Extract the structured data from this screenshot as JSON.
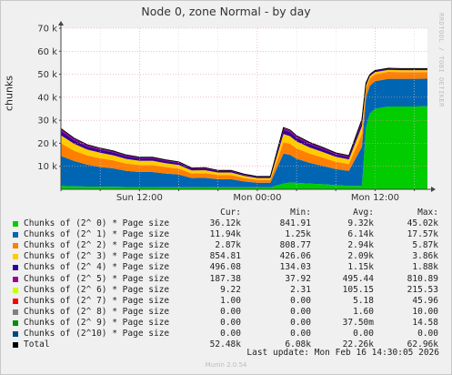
{
  "title": "Node 0, zone Normal - by day",
  "side_label": "RRDTOOL / TOBI OETIKER",
  "ylabel": "chunks",
  "legend_headers": {
    "cur": "Cur:",
    "min": "Min:",
    "avg": "Avg:",
    "max": "Max:"
  },
  "legend": [
    {
      "name": "Chunks of (2^ 0) * Page size",
      "color": "#00cc00",
      "cur": "36.12k",
      "min": "841.91",
      "avg": "9.32k",
      "max": "45.02k"
    },
    {
      "name": "Chunks of (2^ 1) * Page size",
      "color": "#0066b3",
      "cur": "11.94k",
      "min": "1.25k",
      "avg": "6.14k",
      "max": "17.57k"
    },
    {
      "name": "Chunks of (2^ 2) * Page size",
      "color": "#ff8000",
      "cur": "2.87k",
      "min": "808.77",
      "avg": "2.94k",
      "max": "5.87k"
    },
    {
      "name": "Chunks of (2^ 3) * Page size",
      "color": "#ffcc00",
      "cur": "854.81",
      "min": "426.06",
      "avg": "2.09k",
      "max": "3.86k"
    },
    {
      "name": "Chunks of (2^ 4) * Page size",
      "color": "#330099",
      "cur": "496.08",
      "min": "134.03",
      "avg": "1.15k",
      "max": "1.88k"
    },
    {
      "name": "Chunks of (2^ 5) * Page size",
      "color": "#990099",
      "cur": "187.38",
      "min": "37.92",
      "avg": "495.44",
      "max": "810.89"
    },
    {
      "name": "Chunks of (2^ 6) * Page size",
      "color": "#ccff00",
      "cur": "9.22",
      "min": "2.31",
      "avg": "105.15",
      "max": "215.53"
    },
    {
      "name": "Chunks of (2^ 7) * Page size",
      "color": "#ff0000",
      "cur": "1.00",
      "min": "0.00",
      "avg": "5.18",
      "max": "45.96"
    },
    {
      "name": "Chunks of (2^ 8) * Page size",
      "color": "#808080",
      "cur": "0.00",
      "min": "0.00",
      "avg": "1.60",
      "max": "10.00"
    },
    {
      "name": "Chunks of (2^ 9) * Page size",
      "color": "#008f00",
      "cur": "0.00",
      "min": "0.00",
      "avg": "37.50m",
      "max": "14.58"
    },
    {
      "name": "Chunks of (2^10) * Page size",
      "color": "#00487d",
      "cur": "0.00",
      "min": "0.00",
      "avg": "0.00",
      "max": "0.00"
    },
    {
      "name": "Total",
      "color": "#000000",
      "cur": "52.48k",
      "min": "6.08k",
      "avg": "22.26k",
      "max": "62.96k"
    }
  ],
  "last_update": "Last update: Mon Feb 16 14:30:05 2026",
  "footer": "Munin 2.0.54",
  "chart_data": {
    "type": "area",
    "stacked": true,
    "ylim": [
      0,
      70000
    ],
    "yticks": [
      10000,
      20000,
      30000,
      40000,
      50000,
      60000,
      70000
    ],
    "ytick_labels": [
      "10 k",
      "20 k",
      "30 k",
      "40 k",
      "50 k",
      "60 k",
      "70 k"
    ],
    "xlim": [
      0,
      28
    ],
    "xticks": [
      6,
      15,
      24
    ],
    "xtick_labels": [
      "Sun 12:00",
      "Mon 00:00",
      "Mon 12:00"
    ],
    "minor_xticks": [
      0,
      3,
      9,
      12,
      18,
      21,
      27
    ],
    "grid": true,
    "x": [
      0,
      1,
      2,
      3,
      4,
      5,
      6,
      7,
      8,
      9,
      10,
      11,
      12,
      13,
      14,
      15,
      16,
      17,
      17.5,
      18,
      19,
      20,
      21,
      22,
      23,
      23.3,
      23.6,
      24,
      25,
      26,
      27,
      28
    ],
    "series": [
      {
        "name": "Chunks of (2^ 0) * Page size",
        "values": [
          1500,
          1300,
          1200,
          1200,
          1100,
          1000,
          1000,
          1000,
          900,
          900,
          900,
          1000,
          900,
          900,
          900,
          900,
          900,
          2500,
          3000,
          2800,
          2500,
          2200,
          1800,
          1500,
          1500,
          27000,
          33000,
          35000,
          36000,
          36000,
          36000,
          36100
        ]
      },
      {
        "name": "Chunks of (2^ 1) * Page size",
        "values": [
          13000,
          11000,
          9500,
          8500,
          8000,
          7000,
          6500,
          6500,
          6000,
          5500,
          4000,
          4000,
          3500,
          3500,
          2500,
          2000,
          2000,
          13000,
          12000,
          10500,
          9000,
          8000,
          7000,
          6500,
          17000,
          13000,
          12000,
          12000,
          12000,
          12000,
          12000,
          11940
        ]
      },
      {
        "name": "Chunks of (2^ 2) * Page size",
        "values": [
          5500,
          4500,
          4000,
          3800,
          3500,
          3200,
          3000,
          3000,
          2800,
          2600,
          2000,
          2000,
          1800,
          1800,
          1500,
          1200,
          1200,
          5000,
          4800,
          4500,
          4000,
          3600,
          3200,
          3000,
          5500,
          3500,
          3200,
          3000,
          3000,
          2900,
          2900,
          2870
        ]
      },
      {
        "name": "Chunks of (2^ 3) * Page size",
        "values": [
          3500,
          3000,
          2600,
          2400,
          2200,
          2000,
          1900,
          1900,
          1700,
          1600,
          1300,
          1300,
          1100,
          1100,
          900,
          800,
          800,
          3500,
          3300,
          3000,
          2700,
          2400,
          2100,
          2000,
          3500,
          1500,
          1000,
          900,
          900,
          860,
          860,
          855
        ]
      },
      {
        "name": "Chunks of (2^ 4) * Page size",
        "values": [
          1800,
          1500,
          1300,
          1250,
          1200,
          1100,
          1000,
          1000,
          900,
          850,
          700,
          700,
          600,
          600,
          500,
          450,
          450,
          1800,
          1700,
          1600,
          1400,
          1300,
          1100,
          1050,
          1800,
          800,
          550,
          500,
          500,
          500,
          500,
          496
        ]
      },
      {
        "name": "Chunks of (2^ 5) * Page size",
        "values": [
          800,
          700,
          600,
          550,
          500,
          480,
          450,
          450,
          400,
          380,
          300,
          300,
          250,
          250,
          200,
          180,
          180,
          800,
          760,
          700,
          600,
          550,
          480,
          450,
          800,
          300,
          200,
          190,
          190,
          188,
          188,
          187
        ]
      },
      {
        "name": "Chunks of (2^ 6) * Page size",
        "values": [
          210,
          180,
          150,
          140,
          130,
          120,
          110,
          110,
          100,
          90,
          70,
          70,
          60,
          60,
          50,
          40,
          40,
          210,
          200,
          180,
          160,
          140,
          120,
          110,
          210,
          40,
          12,
          10,
          10,
          9,
          9,
          9
        ]
      },
      {
        "name": "Chunks of (2^ 7) * Page size",
        "values": [
          40,
          30,
          20,
          15,
          10,
          8,
          6,
          5,
          5,
          4,
          3,
          3,
          2,
          2,
          2,
          2,
          2,
          40,
          30,
          20,
          10,
          8,
          6,
          5,
          40,
          4,
          2,
          1,
          1,
          1,
          1,
          1
        ]
      },
      {
        "name": "Chunks of (2^ 8) * Page size",
        "values": [
          10,
          8,
          5,
          4,
          3,
          2,
          2,
          1,
          1,
          1,
          1,
          1,
          1,
          1,
          0,
          0,
          0,
          10,
          8,
          5,
          3,
          2,
          1,
          1,
          10,
          0,
          0,
          0,
          0,
          0,
          0,
          0
        ]
      },
      {
        "name": "Chunks of (2^ 9) * Page size",
        "values": [
          14,
          0,
          0,
          0,
          0,
          0,
          0,
          0,
          0,
          0,
          0,
          0,
          0,
          0,
          0,
          0,
          0,
          0,
          0,
          0,
          0,
          0,
          0,
          0,
          0,
          0,
          0,
          0,
          0,
          0,
          0,
          0
        ]
      },
      {
        "name": "Chunks of (2^10) * Page size",
        "values": [
          0,
          0,
          0,
          0,
          0,
          0,
          0,
          0,
          0,
          0,
          0,
          0,
          0,
          0,
          0,
          0,
          0,
          0,
          0,
          0,
          0,
          0,
          0,
          0,
          0,
          0,
          0,
          0,
          0,
          0,
          0,
          0
        ]
      }
    ]
  }
}
